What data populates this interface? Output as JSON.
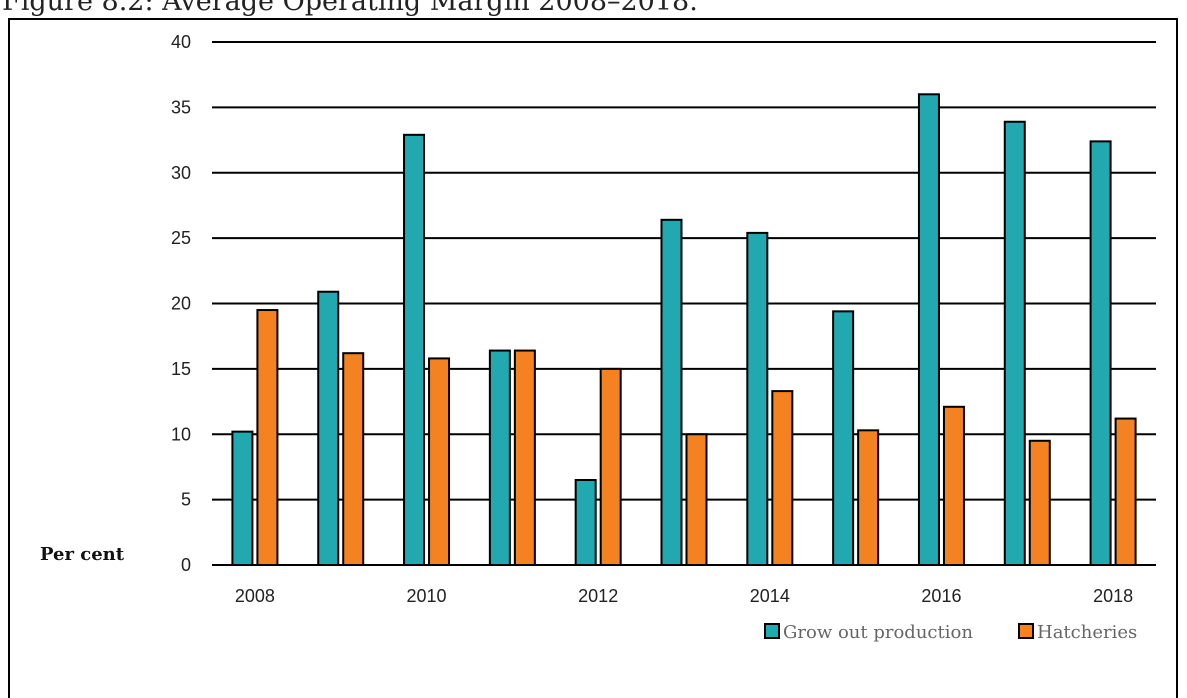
{
  "title": "Figure 8.2: Average Operating Margin 2008–2018.",
  "chart_data": {
    "type": "bar",
    "categories": [
      "2008",
      "2009",
      "2010",
      "2011",
      "2012",
      "2013",
      "2014",
      "2015",
      "2016",
      "2017",
      "2018"
    ],
    "x_tick_labels": [
      "2008",
      "",
      "2010",
      "",
      "2012",
      "",
      "2014",
      "",
      "2016",
      "",
      "2018"
    ],
    "series": [
      {
        "name": "Grow out production",
        "color": "#22a9b0",
        "values": [
          10.2,
          20.9,
          32.9,
          16.4,
          6.5,
          26.4,
          25.4,
          19.4,
          36.0,
          33.9,
          32.4
        ]
      },
      {
        "name": "Hatcheries",
        "color": "#f58220",
        "values": [
          19.5,
          16.2,
          15.8,
          16.4,
          15.0,
          10.0,
          13.3,
          10.3,
          12.1,
          9.5,
          11.2
        ]
      }
    ],
    "ylabel": "Per cent",
    "ylim": [
      0,
      40
    ],
    "yticks": [
      0,
      5,
      10,
      15,
      20,
      25,
      30,
      35,
      40
    ],
    "grid": true,
    "legend_position": "bottom-right"
  }
}
